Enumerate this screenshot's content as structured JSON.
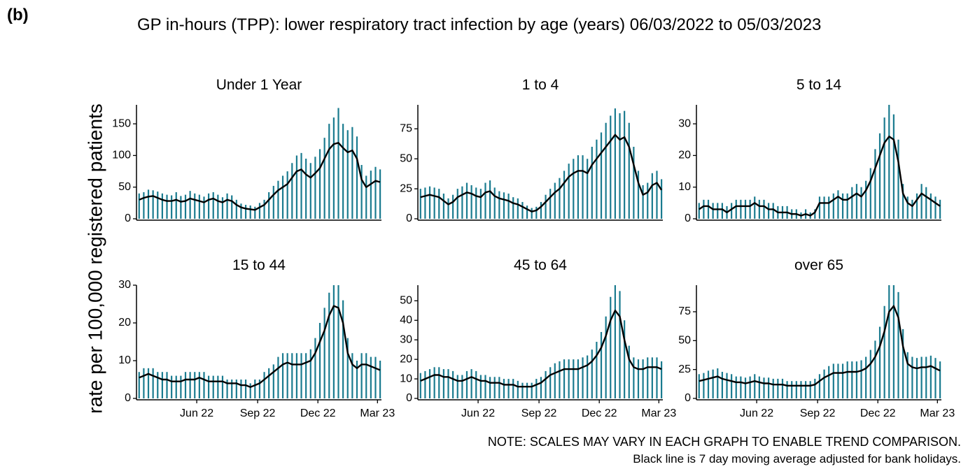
{
  "panel_label": "(b)",
  "title": "GP in-hours (TPP): lower respiratory tract infection by age (years) 06/03/2022 to 05/03/2023",
  "y_label": "rate per 100,000 registered patients",
  "notes": [
    "NOTE: SCALES MAY VARY IN EACH GRAPH TO ENABLE TREND COMPARISON.",
    "Black line is 7 day moving average adjusted for bank holidays."
  ],
  "chart_data": [
    {
      "type": "bar",
      "title": "Under 1 Year",
      "x": [
        0,
        7,
        14,
        21,
        28,
        35,
        42,
        49,
        56,
        63,
        70,
        77,
        84,
        91,
        98,
        105,
        112,
        119,
        126,
        133,
        140,
        147,
        154,
        161,
        168,
        175,
        182,
        189,
        196,
        203,
        210,
        217,
        224,
        231,
        238,
        245,
        252,
        259,
        266,
        273,
        280,
        287,
        294,
        301,
        308,
        315,
        322,
        329,
        336,
        343,
        350,
        357,
        364
      ],
      "xlim": [
        -4,
        366
      ],
      "ylim": [
        0,
        180
      ],
      "yticks": [
        0,
        50,
        100,
        150
      ],
      "series": [
        {
          "type": "bar",
          "color": "#1a7b8f",
          "values": [
            40,
            42,
            46,
            45,
            43,
            40,
            38,
            37,
            42,
            36,
            38,
            44,
            40,
            38,
            35,
            40,
            42,
            38,
            34,
            40,
            37,
            30,
            24,
            22,
            21,
            19,
            25,
            30,
            42,
            52,
            60,
            68,
            75,
            88,
            100,
            104,
            95,
            88,
            98,
            110,
            128,
            150,
            160,
            175,
            150,
            140,
            145,
            130,
            85,
            68,
            76,
            82,
            78
          ]
        },
        {
          "type": "line",
          "color": "#000000",
          "values": [
            30,
            33,
            35,
            36,
            33,
            30,
            28,
            28,
            30,
            27,
            28,
            32,
            30,
            28,
            26,
            30,
            32,
            28,
            26,
            30,
            28,
            22,
            18,
            16,
            15,
            14,
            18,
            22,
            30,
            38,
            45,
            50,
            55,
            65,
            75,
            78,
            70,
            65,
            72,
            80,
            95,
            110,
            118,
            120,
            112,
            105,
            108,
            95,
            62,
            50,
            55,
            60,
            58
          ]
        }
      ]
    },
    {
      "type": "bar",
      "title": "1 to 4",
      "x": [
        0,
        7,
        14,
        21,
        28,
        35,
        42,
        49,
        56,
        63,
        70,
        77,
        84,
        91,
        98,
        105,
        112,
        119,
        126,
        133,
        140,
        147,
        154,
        161,
        168,
        175,
        182,
        189,
        196,
        203,
        210,
        217,
        224,
        231,
        238,
        245,
        252,
        259,
        266,
        273,
        280,
        287,
        294,
        301,
        308,
        315,
        322,
        329,
        336,
        343,
        350,
        357,
        364
      ],
      "xlim": [
        -4,
        366
      ],
      "ylim": [
        0,
        95
      ],
      "yticks": [
        0,
        25,
        50,
        75
      ],
      "series": [
        {
          "type": "bar",
          "color": "#1a7b8f",
          "values": [
            25,
            26,
            27,
            26,
            25,
            21,
            17,
            20,
            25,
            27,
            30,
            28,
            26,
            25,
            30,
            32,
            26,
            23,
            22,
            21,
            18,
            17,
            14,
            11,
            9,
            10,
            14,
            20,
            25,
            30,
            34,
            40,
            46,
            50,
            53,
            53,
            50,
            60,
            66,
            72,
            80,
            86,
            92,
            88,
            90,
            80,
            60,
            40,
            28,
            30,
            38,
            40,
            33
          ]
        },
        {
          "type": "line",
          "color": "#000000",
          "values": [
            18,
            19,
            20,
            19,
            18,
            15,
            12,
            14,
            18,
            20,
            22,
            21,
            19,
            18,
            22,
            23,
            19,
            17,
            16,
            15,
            13,
            12,
            10,
            8,
            6,
            7,
            10,
            14,
            18,
            22,
            25,
            30,
            35,
            38,
            40,
            40,
            38,
            45,
            50,
            55,
            60,
            65,
            70,
            66,
            68,
            60,
            45,
            30,
            20,
            22,
            28,
            30,
            24
          ]
        }
      ]
    },
    {
      "type": "bar",
      "title": "5 to 14",
      "x": [
        0,
        7,
        14,
        21,
        28,
        35,
        42,
        49,
        56,
        63,
        70,
        77,
        84,
        91,
        98,
        105,
        112,
        119,
        126,
        133,
        140,
        147,
        154,
        161,
        168,
        175,
        182,
        189,
        196,
        203,
        210,
        217,
        224,
        231,
        238,
        245,
        252,
        259,
        266,
        273,
        280,
        287,
        294,
        301,
        308,
        315,
        322,
        329,
        336,
        343,
        350,
        357,
        364
      ],
      "xlim": [
        -4,
        366
      ],
      "ylim": [
        0,
        36
      ],
      "yticks": [
        0,
        10,
        20,
        30
      ],
      "series": [
        {
          "type": "bar",
          "color": "#1a7b8f",
          "values": [
            5,
            6,
            6,
            5,
            5,
            5,
            4,
            5,
            6,
            6,
            6,
            6,
            7,
            6,
            6,
            5,
            5,
            4,
            4,
            4,
            3,
            3,
            2,
            3,
            2,
            3,
            7,
            7,
            7,
            8,
            9,
            8,
            8,
            10,
            11,
            10,
            12,
            16,
            22,
            27,
            32,
            36,
            33,
            25,
            11,
            7,
            6,
            8,
            11,
            10,
            8,
            7,
            6
          ]
        },
        {
          "type": "line",
          "color": "#000000",
          "values": [
            3,
            4,
            4,
            3,
            3,
            3,
            2,
            3,
            4,
            4,
            4,
            4,
            5,
            4,
            4,
            3,
            3,
            2,
            2,
            2,
            1.5,
            1.5,
            1,
            1.5,
            1,
            2,
            5,
            5,
            5,
            6,
            7,
            6,
            6,
            7,
            8,
            7,
            9,
            12,
            16,
            20,
            24,
            26,
            25,
            18,
            8,
            5,
            4,
            6,
            8,
            7,
            6,
            5,
            4
          ]
        }
      ]
    },
    {
      "type": "bar",
      "title": "15 to 44",
      "x": [
        0,
        7,
        14,
        21,
        28,
        35,
        42,
        49,
        56,
        63,
        70,
        77,
        84,
        91,
        98,
        105,
        112,
        119,
        126,
        133,
        140,
        147,
        154,
        161,
        168,
        175,
        182,
        189,
        196,
        203,
        210,
        217,
        224,
        231,
        238,
        245,
        252,
        259,
        266,
        273,
        280,
        287,
        294,
        301,
        308,
        315,
        322,
        329,
        336,
        343,
        350,
        357,
        364
      ],
      "xlim": [
        -4,
        366
      ],
      "ylim": [
        0,
        30
      ],
      "yticks": [
        0,
        10,
        20,
        30
      ],
      "xticks": [
        {
          "value": 87,
          "label": "Jun 22"
        },
        {
          "value": 179,
          "label": "Sep 22"
        },
        {
          "value": 270,
          "label": "Dec 22"
        },
        {
          "value": 360,
          "label": "Mar 23"
        }
      ],
      "series": [
        {
          "type": "bar",
          "color": "#1a7b8f",
          "values": [
            7,
            8,
            8,
            8,
            7,
            7,
            7,
            6,
            6,
            6,
            7,
            7,
            7,
            7,
            7,
            6,
            6,
            6,
            6,
            5,
            5,
            5,
            5,
            5,
            4,
            5,
            5,
            7,
            8,
            9,
            11,
            12,
            12,
            12,
            12,
            12,
            12,
            13,
            16,
            20,
            24,
            28,
            30,
            30,
            26,
            16,
            12,
            10,
            12,
            12,
            11,
            11,
            10
          ]
        },
        {
          "type": "line",
          "color": "#000000",
          "values": [
            5.5,
            6,
            6.5,
            6,
            5.5,
            5,
            5,
            4.5,
            4.5,
            4.5,
            5,
            5,
            5,
            5.5,
            5,
            4.5,
            4.5,
            4.5,
            4.5,
            4,
            4,
            4,
            3.5,
            3.5,
            3,
            3.5,
            4,
            5,
            6,
            7,
            8,
            9,
            9.5,
            9,
            9,
            9,
            9.5,
            10,
            12,
            15,
            18,
            22,
            24.5,
            24,
            20,
            12,
            9,
            8,
            9,
            9,
            8.5,
            8,
            7.5
          ]
        }
      ]
    },
    {
      "type": "bar",
      "title": "45 to 64",
      "x": [
        0,
        7,
        14,
        21,
        28,
        35,
        42,
        49,
        56,
        63,
        70,
        77,
        84,
        91,
        98,
        105,
        112,
        119,
        126,
        133,
        140,
        147,
        154,
        161,
        168,
        175,
        182,
        189,
        196,
        203,
        210,
        217,
        224,
        231,
        238,
        245,
        252,
        259,
        266,
        273,
        280,
        287,
        294,
        301,
        308,
        315,
        322,
        329,
        336,
        343,
        350,
        357,
        364
      ],
      "xlim": [
        -4,
        366
      ],
      "ylim": [
        0,
        58
      ],
      "yticks": [
        0,
        10,
        20,
        30,
        40,
        50
      ],
      "xticks": [
        {
          "value": 87,
          "label": "Jun 22"
        },
        {
          "value": 179,
          "label": "Sep 22"
        },
        {
          "value": 270,
          "label": "Dec 22"
        },
        {
          "value": 360,
          "label": "Mar 23"
        }
      ],
      "series": [
        {
          "type": "bar",
          "color": "#1a7b8f",
          "values": [
            13,
            14,
            15,
            16,
            16,
            15,
            15,
            14,
            12,
            12,
            14,
            15,
            14,
            12,
            12,
            11,
            11,
            11,
            10,
            10,
            10,
            9,
            8,
            8,
            8,
            10,
            11,
            14,
            16,
            18,
            19,
            20,
            20,
            20,
            20,
            21,
            22,
            25,
            29,
            34,
            42,
            52,
            58,
            55,
            40,
            27,
            21,
            20,
            20,
            21,
            21,
            21,
            19
          ]
        },
        {
          "type": "line",
          "color": "#000000",
          "values": [
            9,
            10,
            11,
            12,
            12,
            11,
            11,
            10,
            9,
            9,
            10,
            11,
            10,
            9,
            9,
            8,
            8,
            8,
            7,
            7,
            7,
            6,
            6,
            6,
            6,
            7,
            8,
            10,
            12,
            13,
            14,
            15,
            15,
            15,
            15,
            16,
            17,
            19,
            22,
            26,
            32,
            40,
            45,
            42,
            30,
            20,
            16,
            15,
            15,
            16,
            16,
            16,
            15
          ]
        }
      ]
    },
    {
      "type": "bar",
      "title": "over 65",
      "x": [
        0,
        7,
        14,
        21,
        28,
        35,
        42,
        49,
        56,
        63,
        70,
        77,
        84,
        91,
        98,
        105,
        112,
        119,
        126,
        133,
        140,
        147,
        154,
        161,
        168,
        175,
        182,
        189,
        196,
        203,
        210,
        217,
        224,
        231,
        238,
        245,
        252,
        259,
        266,
        273,
        280,
        287,
        294,
        301,
        308,
        315,
        322,
        329,
        336,
        343,
        350,
        357,
        364
      ],
      "xlim": [
        -4,
        366
      ],
      "ylim": [
        0,
        98
      ],
      "yticks": [
        0,
        25,
        50,
        75
      ],
      "xticks": [
        {
          "value": 87,
          "label": "Jun 22"
        },
        {
          "value": 179,
          "label": "Sep 22"
        },
        {
          "value": 270,
          "label": "Dec 22"
        },
        {
          "value": 360,
          "label": "Mar 23"
        }
      ],
      "series": [
        {
          "type": "bar",
          "color": "#1a7b8f",
          "values": [
            21,
            22,
            24,
            25,
            26,
            23,
            22,
            21,
            19,
            19,
            18,
            19,
            21,
            19,
            18,
            18,
            17,
            17,
            17,
            15,
            15,
            15,
            15,
            15,
            15,
            17,
            21,
            25,
            28,
            30,
            30,
            30,
            32,
            32,
            32,
            33,
            36,
            42,
            50,
            62,
            80,
            98,
            98,
            92,
            60,
            40,
            36,
            35,
            36,
            36,
            37,
            35,
            32
          ]
        },
        {
          "type": "line",
          "color": "#000000",
          "values": [
            15,
            16,
            17,
            18,
            19,
            17,
            16,
            15,
            14,
            14,
            13,
            14,
            15,
            14,
            13,
            13,
            12,
            12,
            12,
            11,
            11,
            11,
            11,
            11,
            11,
            12,
            15,
            18,
            20,
            22,
            22,
            22,
            23,
            23,
            23,
            24,
            26,
            30,
            36,
            45,
            58,
            75,
            80,
            70,
            45,
            30,
            27,
            26,
            27,
            27,
            28,
            26,
            24
          ]
        }
      ]
    }
  ]
}
